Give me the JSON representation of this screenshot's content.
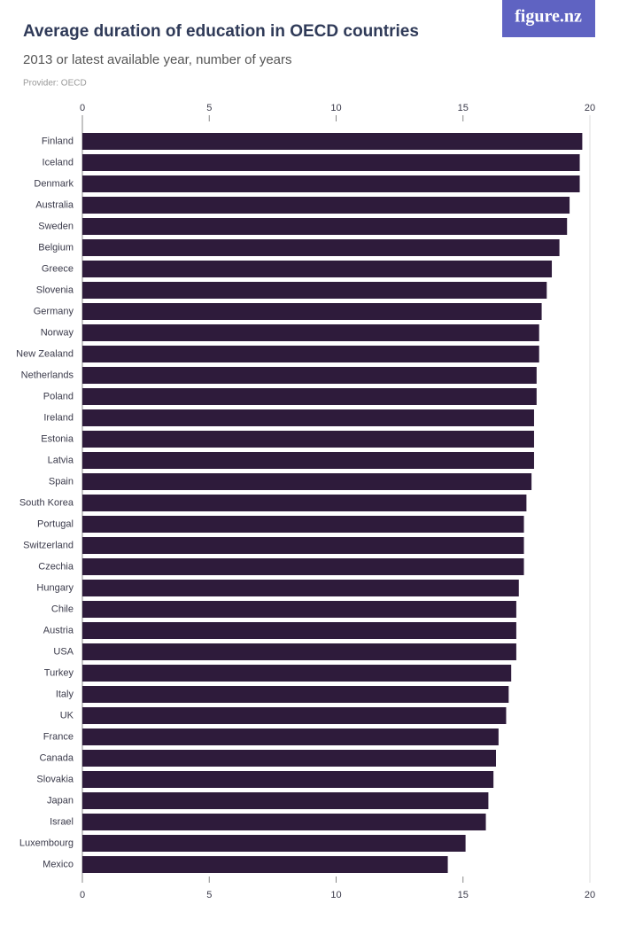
{
  "logo": "figure.nz",
  "chart_data": {
    "type": "hbar",
    "title": "Average duration of education in OECD countries",
    "subtitle": "2013 or latest available year, number of years",
    "provider": "Provider: OECD",
    "categories": [
      "Finland",
      "Iceland",
      "Denmark",
      "Australia",
      "Sweden",
      "Belgium",
      "Greece",
      "Slovenia",
      "Germany",
      "Norway",
      "New Zealand",
      "Netherlands",
      "Poland",
      "Ireland",
      "Estonia",
      "Latvia",
      "Spain",
      "South Korea",
      "Portugal",
      "Switzerland",
      "Czechia",
      "Hungary",
      "Chile",
      "Austria",
      "USA",
      "Turkey",
      "Italy",
      "UK",
      "France",
      "Canada",
      "Slovakia",
      "Japan",
      "Israel",
      "Luxembourg",
      "Mexico"
    ],
    "values": [
      19.7,
      19.6,
      19.6,
      19.2,
      19.1,
      18.8,
      18.5,
      18.3,
      18.1,
      18.0,
      18.0,
      17.9,
      17.9,
      17.8,
      17.8,
      17.8,
      17.7,
      17.5,
      17.4,
      17.4,
      17.4,
      17.2,
      17.1,
      17.1,
      17.1,
      16.9,
      16.8,
      16.7,
      16.4,
      16.3,
      16.2,
      16.0,
      15.9,
      15.1,
      14.4
    ],
    "color": "#2e1b3b",
    "xlim": [
      0,
      20
    ],
    "xticks": [
      0,
      5,
      10,
      15,
      20
    ]
  }
}
